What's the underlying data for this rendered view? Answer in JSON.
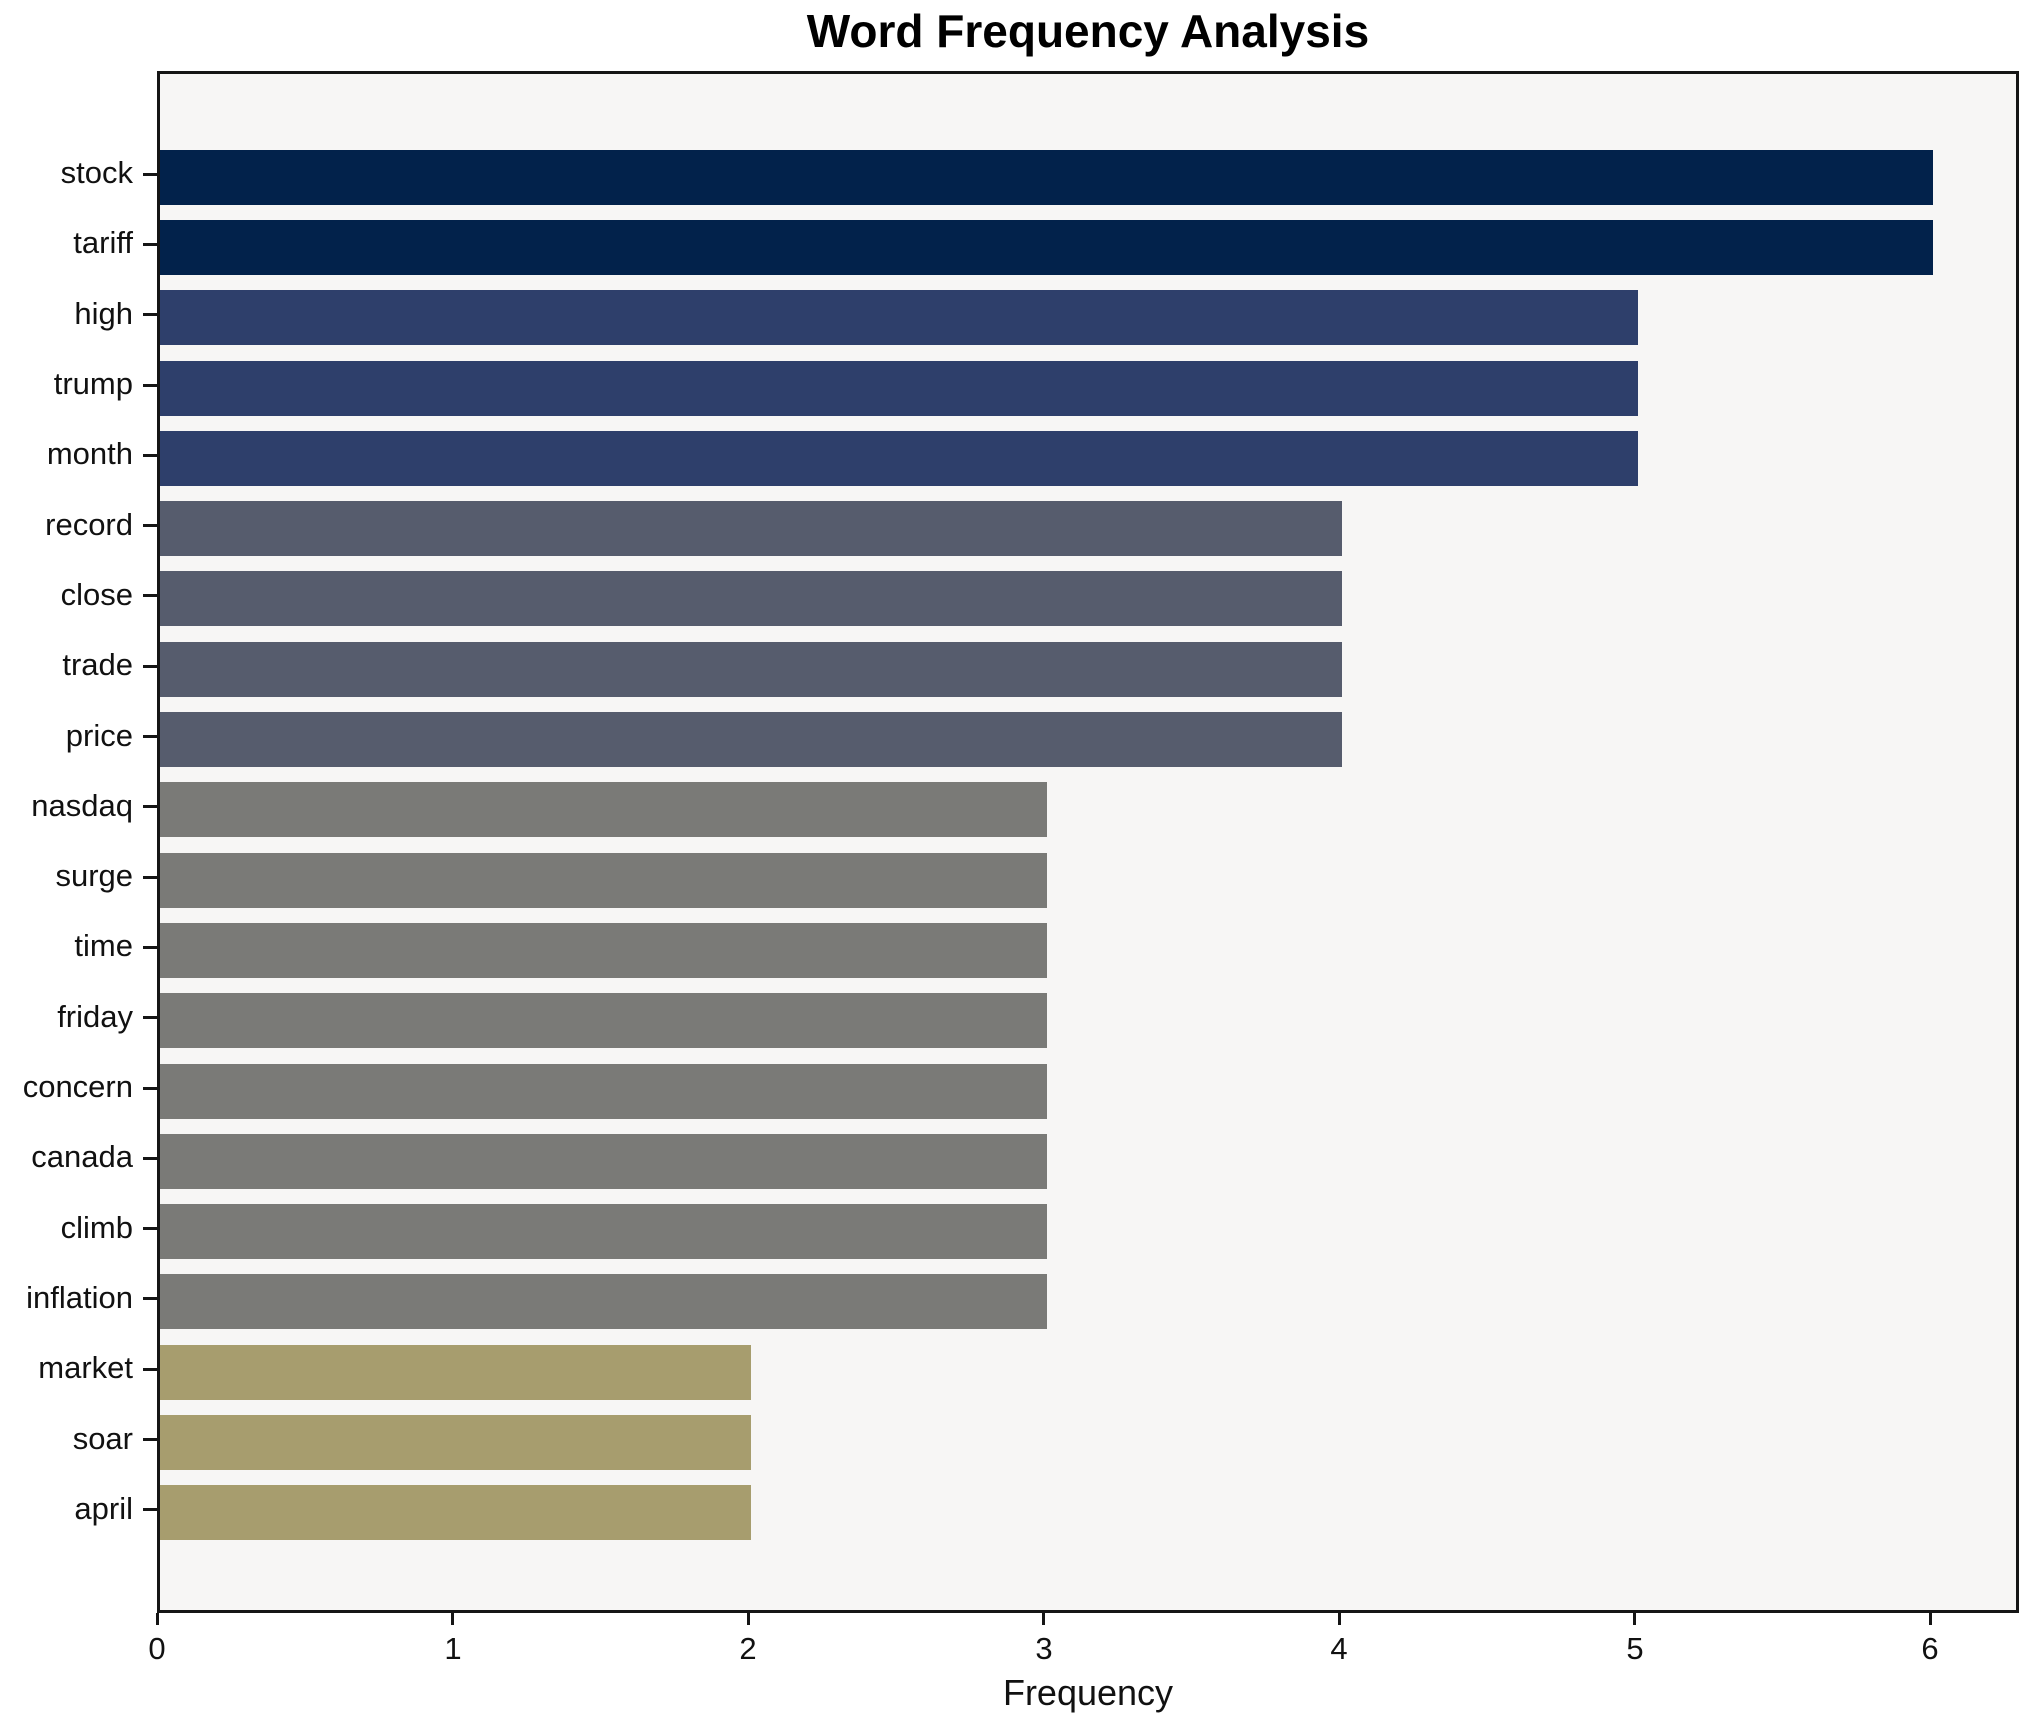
{
  "chart_data": {
    "type": "bar",
    "orientation": "horizontal",
    "title": "Word Frequency Analysis",
    "xlabel": "Frequency",
    "ylabel": "",
    "categories": [
      "stock",
      "tariff",
      "high",
      "trump",
      "month",
      "record",
      "close",
      "trade",
      "price",
      "nasdaq",
      "surge",
      "time",
      "friday",
      "concern",
      "canada",
      "climb",
      "inflation",
      "market",
      "soar",
      "april"
    ],
    "values": [
      6,
      6,
      5,
      5,
      5,
      4,
      4,
      4,
      4,
      3,
      3,
      3,
      3,
      3,
      3,
      3,
      3,
      2,
      2,
      2
    ],
    "xticks": [
      0,
      1,
      2,
      3,
      4,
      5,
      6
    ],
    "xlim": [
      0,
      6.3
    ],
    "grid": false,
    "legend_position": "none",
    "colors_by_value": {
      "6": "#02224b",
      "5": "#2e3f6b",
      "4": "#565c6d",
      "3": "#7a7a77",
      "2": "#a79d6e"
    },
    "plot_background": "#f7f6f5",
    "figure_background": "#ffffff",
    "axis_color": "#151515",
    "text_color": "#111111"
  }
}
